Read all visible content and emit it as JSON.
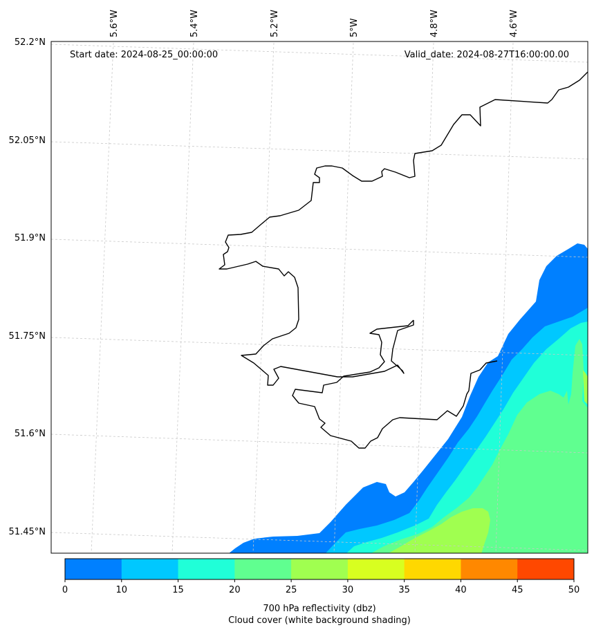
{
  "map": {
    "lat_labels": [
      "52.2°N",
      "52.05°N",
      "51.9°N",
      "51.75°N",
      "51.6°N",
      "51.45°N"
    ],
    "lon_labels": [
      "5.6°W",
      "5.4°W",
      "5.2°W",
      "5°W",
      "4.8°W",
      "4.6°W"
    ],
    "start_date": "Start date: 2024-08-25_00:00:00",
    "valid_date": "Valid_date: 2024-08-27T16:00:00.00"
  },
  "colorbar": {
    "ticks": [
      "0",
      "10",
      "15",
      "20",
      "25",
      "30",
      "35",
      "40",
      "45",
      "50"
    ],
    "colors": [
      "#0080ff",
      "#00c8ff",
      "#20ffd8",
      "#60ff90",
      "#a0ff50",
      "#d8ff20",
      "#ffd800",
      "#ff8800",
      "#ff4800"
    ],
    "label_line1": "700 hPa reflectivity (dbz)",
    "label_line2": "Cloud cover (white background shading)"
  },
  "reflectivity_levels_dbz": [
    0,
    10,
    15,
    20,
    25,
    30,
    35,
    40,
    45,
    50
  ]
}
